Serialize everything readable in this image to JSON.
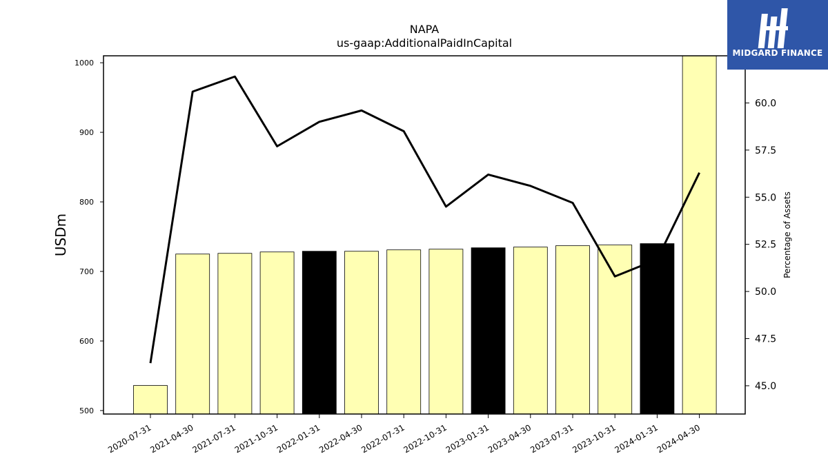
{
  "chart_data": {
    "type": "bar",
    "title": "NAPA",
    "subtitle": "us-gaap:AdditionalPaidInCapital",
    "ylabel": "USDm",
    "y2label": "Percentage of Assets",
    "ylim": [
      495,
      1010
    ],
    "y2lim": [
      43.5,
      62.5
    ],
    "yticks": [
      500,
      600,
      700,
      800,
      900,
      1000
    ],
    "y2ticks": [
      "45.0",
      "47.5",
      "50.0",
      "52.5",
      "55.0",
      "57.5",
      "60.0"
    ],
    "categories": [
      "2020-07-31",
      "2021-04-30",
      "2021-07-31",
      "2021-10-31",
      "2022-01-31",
      "2022-04-30",
      "2022-07-31",
      "2022-10-31",
      "2023-01-31",
      "2023-04-30",
      "2023-07-31",
      "2023-10-31",
      "2024-01-31",
      "2024-04-30"
    ],
    "series": [
      {
        "kind": "bar",
        "axis": "left",
        "values": [
          536,
          725,
          726,
          728,
          729,
          729,
          731,
          732,
          734,
          735,
          737,
          738,
          740,
          1030
        ],
        "colors": [
          "#ffffb3",
          "#ffffb3",
          "#ffffb3",
          "#ffffb3",
          "#000000",
          "#ffffb3",
          "#ffffb3",
          "#ffffb3",
          "#000000",
          "#ffffb3",
          "#ffffb3",
          "#ffffb3",
          "#000000",
          "#ffffb3"
        ]
      },
      {
        "kind": "line",
        "axis": "right",
        "values": [
          46.2,
          60.6,
          61.4,
          57.7,
          59.0,
          59.6,
          58.5,
          54.5,
          56.2,
          55.6,
          54.7,
          50.8,
          51.7,
          56.3
        ],
        "color": "#000000"
      }
    ]
  },
  "logo": {
    "text": "MIDGARD FINANCE",
    "background": "#2f56a8"
  }
}
